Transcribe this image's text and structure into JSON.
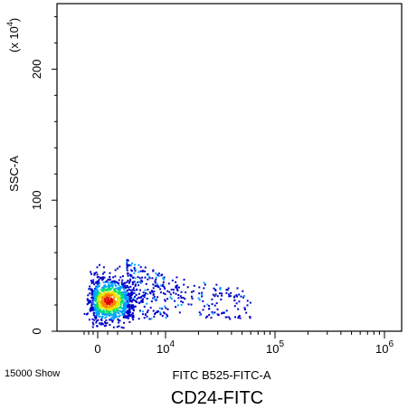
{
  "chart_data": {
    "type": "scatter",
    "title": "CD24-FITC",
    "xlabel": "FITC B525-FITC-A",
    "ylabel": "SSC-A",
    "y_multiplier_label": "(x 10",
    "y_multiplier_exp": "4",
    "y_multiplier_close": ")",
    "event_count_label": "15000 Show",
    "x_scale": "biexponential",
    "xlim": [
      -2000,
      1000000
    ],
    "ylim": [
      0,
      250
    ],
    "x_ticks": [
      {
        "base": "0",
        "exp": "",
        "value": 0
      },
      {
        "base": "10",
        "exp": "4",
        "value": 10000
      },
      {
        "base": "10",
        "exp": "5",
        "value": 100000
      },
      {
        "base": "10",
        "exp": "6",
        "value": 1000000
      }
    ],
    "y_ticks": [
      {
        "label": "0",
        "value": 0
      },
      {
        "label": "100",
        "value": 100
      },
      {
        "label": "200",
        "value": 200
      }
    ],
    "grid": false,
    "legend": "none",
    "color_scale": [
      "#0000c8",
      "#00a0ff",
      "#00e070",
      "#e8e800",
      "#ff8000",
      "#e00000"
    ],
    "populations": [
      {
        "name_hidden": "core",
        "x_center": 500,
        "x_spread": 700,
        "y_center": 24,
        "y_spread": 9,
        "count": 900
      },
      {
        "name_hidden": "tail",
        "x_range": [
          1500,
          60000
        ],
        "y_range": [
          10,
          55
        ],
        "count": 380
      }
    ]
  }
}
